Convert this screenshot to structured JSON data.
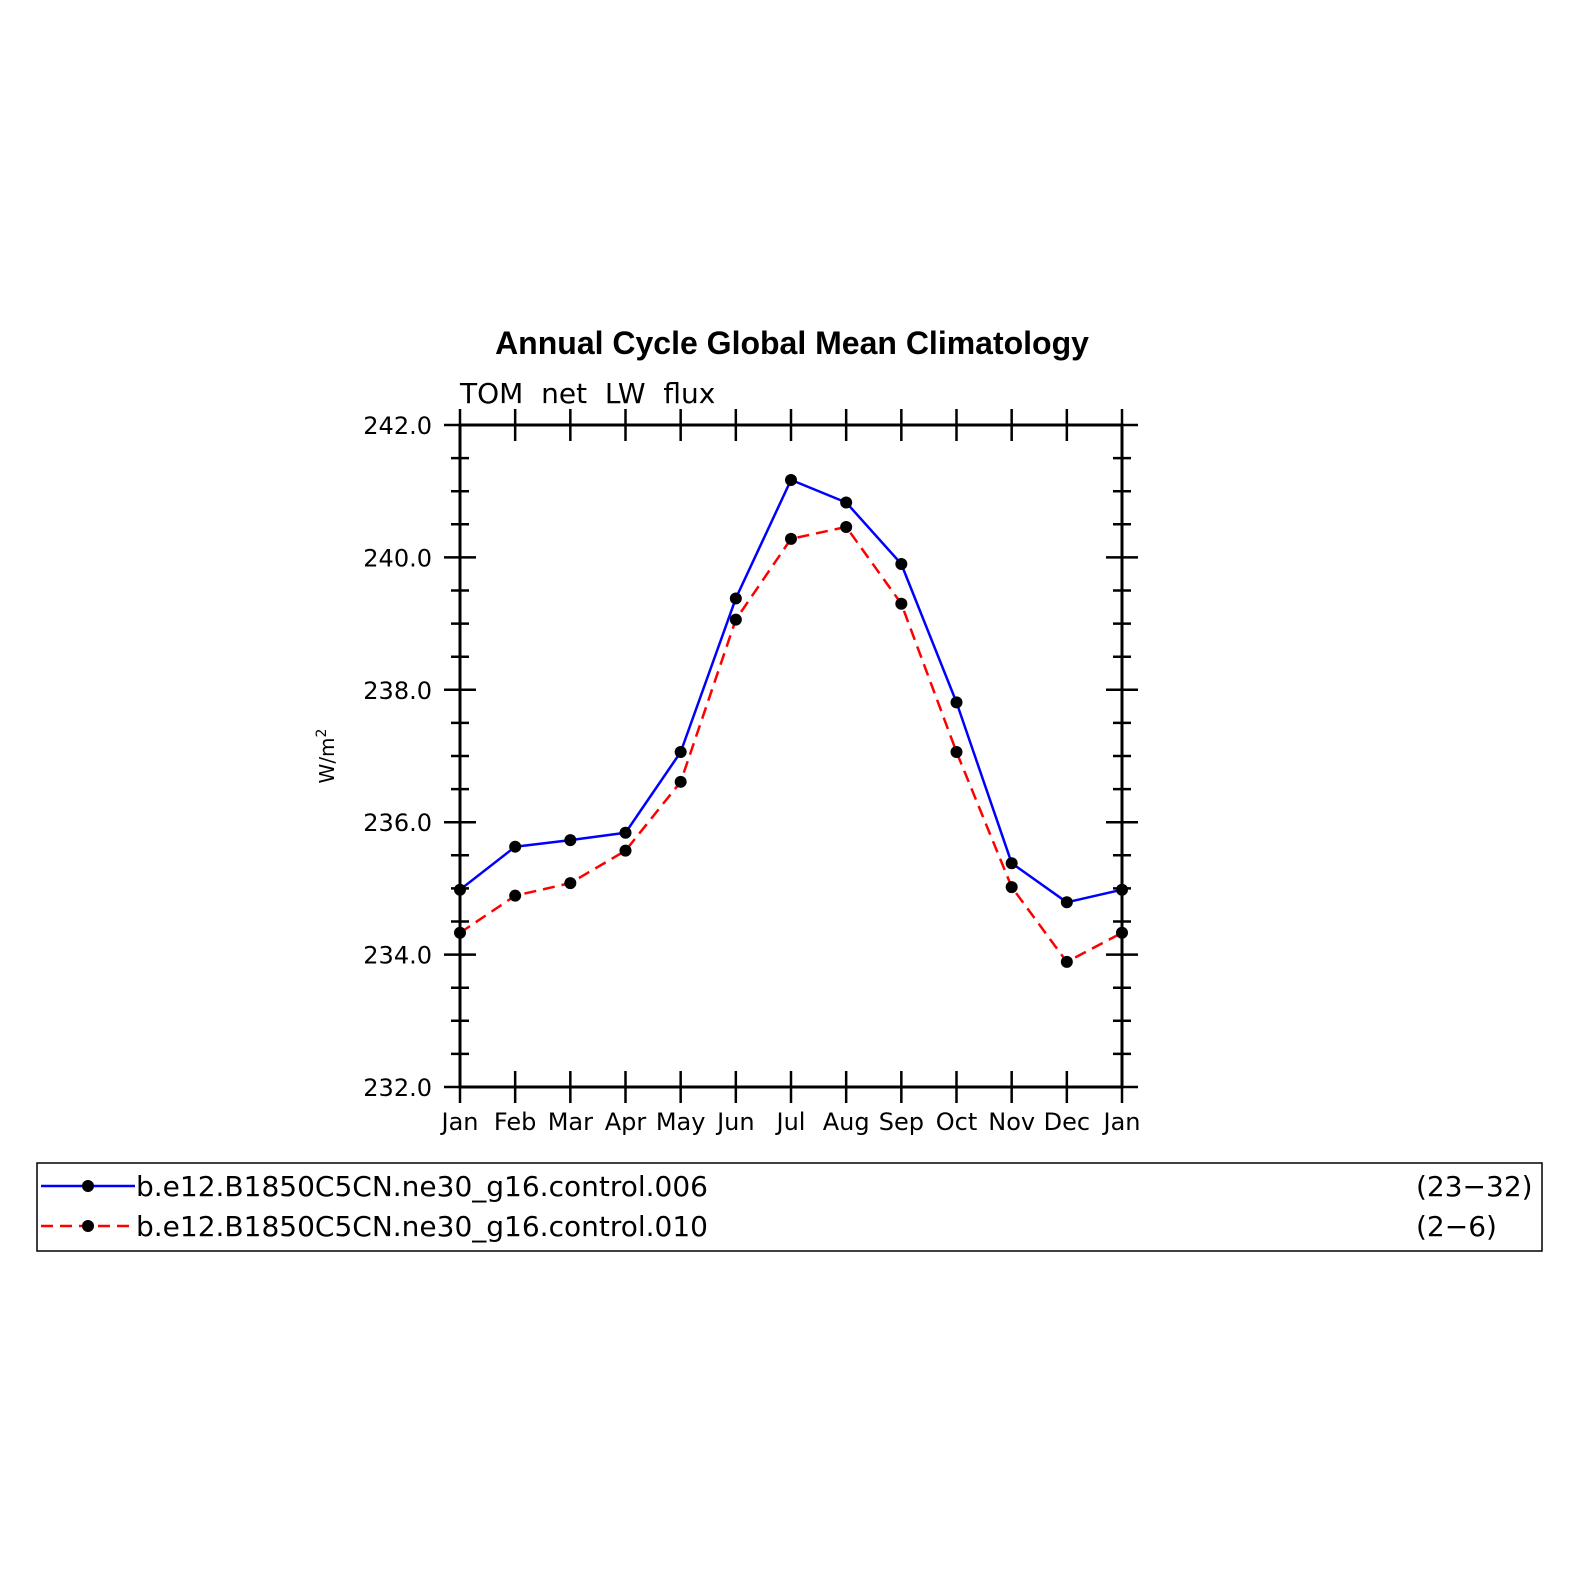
{
  "chart_data": {
    "type": "line",
    "title": "Annual Cycle Global Mean Climatology",
    "subtitle": "TOM  net  LW  flux",
    "ylabel": "W/m",
    "ylabel_sup": "2",
    "xlabel": "",
    "categories": [
      "Jan",
      "Feb",
      "Mar",
      "Apr",
      "May",
      "Jun",
      "Jul",
      "Aug",
      "Sep",
      "Oct",
      "Nov",
      "Dec",
      "Jan"
    ],
    "ylim": [
      232.0,
      242.0
    ],
    "yticks": [
      "232.0",
      "234.0",
      "236.0",
      "238.0",
      "240.0",
      "242.0"
    ],
    "ytick_values": [
      232,
      234,
      236,
      238,
      240,
      242
    ],
    "grid": false,
    "legend_position": "bottom",
    "series": [
      {
        "name": "b.e12.B1850C5CN.ne30_g16.control.006",
        "years": "(23−32)",
        "color": "#0000ff",
        "dash": "solid",
        "values": [
          234.98,
          235.63,
          235.73,
          235.84,
          237.06,
          239.38,
          241.17,
          240.83,
          239.9,
          237.81,
          235.38,
          234.79,
          234.98
        ]
      },
      {
        "name": "b.e12.B1850C5CN.ne30_g16.control.010",
        "years": "(2−6)",
        "color": "#ff0000",
        "dash": "dashed",
        "values": [
          234.33,
          234.89,
          235.08,
          235.57,
          236.61,
          239.06,
          240.28,
          240.46,
          239.3,
          237.06,
          235.02,
          233.89,
          234.33
        ]
      }
    ],
    "marker_color": "#000000"
  }
}
